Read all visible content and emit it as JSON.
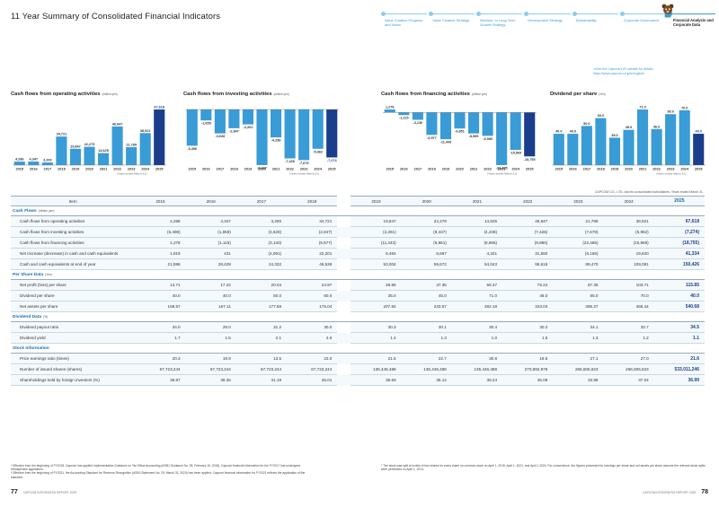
{
  "header": {
    "title": "11 Year Summary of Consolidated Financial Indicators",
    "nav": [
      {
        "label": "Value Creation Progress and Vision",
        "active": false
      },
      {
        "label": "Value Creation Strategy",
        "active": false
      },
      {
        "label": "Medium- to Long-Term Growth Strategy",
        "active": false
      },
      {
        "label": "Development Strategy",
        "active": false
      },
      {
        "label": "Sustainability",
        "active": false
      },
      {
        "label": "Corporate Governance",
        "active": false
      },
      {
        "label": "Financial Analysis and Corporate Data",
        "active": true
      }
    ]
  },
  "see_link": {
    "line1": "➜See the Capcom's IR website for details",
    "line2": "https://www.capcom.co.jp/ir/english/"
  },
  "charts_text": {
    "cf_operating": {
      "title": "Cash flows from operating activities",
      "unit": "(million yen)",
      "note": "(Years ended March 31)"
    },
    "cf_investing": {
      "title": "Cash flows from investing activities",
      "unit": "(million yen)",
      "note": "(Years ended March 31)"
    },
    "cf_financing": {
      "title": "Cash flows from financing activities",
      "unit": "(million yen)",
      "note": "(Years ended March 31)"
    },
    "dividend": {
      "title": "Dividend per share",
      "unit": "(Yen)",
      "note": "(Years ended March 31)"
    }
  },
  "chart_data": [
    {
      "type": "bar",
      "title": "Cash flows from operating activities",
      "ylabel": "(million yen)",
      "categories": [
        "2015",
        "2016",
        "2017",
        "2018",
        "2019",
        "2020",
        "2021",
        "2022",
        "2023",
        "2024",
        "2025"
      ],
      "values": [
        4286,
        4347,
        3200,
        34721,
        19847,
        22279,
        14625,
        46947,
        21789,
        38921,
        67618
      ],
      "labels": [
        "4,286",
        "4,347",
        "3,200",
        "34,721",
        "19,847",
        "22,279",
        "14,625",
        "46,947",
        "21,789",
        "38,921",
        "67,618"
      ],
      "colors": {
        "bar": "#3a9cd6",
        "latest": "#1a3d8c"
      }
    },
    {
      "type": "bar",
      "title": "Cash flows from investing activities",
      "ylabel": "(million yen)",
      "categories": [
        "2015",
        "2016",
        "2017",
        "2018",
        "2019",
        "2020",
        "2021",
        "2022",
        "2023",
        "2024",
        "2025"
      ],
      "values": [
        -5496,
        -1659,
        -3628,
        -2847,
        -2261,
        -8437,
        -4238,
        -7426,
        -7679,
        -5962,
        -7274
      ],
      "labels": [
        "-5,496",
        "-1,659",
        "-3,628",
        "-2,847",
        "-2,261",
        "-8,437",
        "-4,238",
        "-7,426",
        "-7,679",
        "-5,962",
        "-7,274"
      ],
      "colors": {
        "bar": "#3a9cd6",
        "latest": "#1a3d8c"
      }
    },
    {
      "type": "bar",
      "title": "Cash flows from financing activities",
      "ylabel": "(million yen)",
      "categories": [
        "2015",
        "2016",
        "2017",
        "2018",
        "2019",
        "2020",
        "2021",
        "2022",
        "2023",
        "2024",
        "2025"
      ],
      "values": [
        1278,
        -1115,
        -3130,
        -9577,
        -11443,
        -6851,
        -8965,
        -9980,
        -22485,
        -15969,
        -18755
      ],
      "labels": [
        "1,278",
        "-1,115",
        "-3,130",
        "-9,577",
        "-11,443",
        "-6,851",
        "-8,965",
        "-9,980",
        "-22,485",
        "-15,969",
        "-18,755"
      ],
      "colors": {
        "bar": "#3a9cd6",
        "latest": "#1a3d8c"
      }
    },
    {
      "type": "bar",
      "title": "Dividend per share",
      "ylabel": "(Yen)",
      "categories": [
        "2015",
        "2016",
        "2017",
        "2018",
        "2019",
        "2020",
        "2021",
        "2022",
        "2023",
        "2024",
        "2025"
      ],
      "values": [
        40.0,
        40.0,
        50.0,
        60.0,
        35.0,
        45.0,
        71.0,
        46.0,
        65.0,
        70.0,
        40.0
      ],
      "labels": [
        "40.0",
        "40.0",
        "50.0",
        "60.0",
        "35.0",
        "45.0",
        "71.0",
        "46.0",
        "65.0",
        "70.0",
        "40.0"
      ],
      "colors": {
        "bar": "#3a9cd6",
        "latest": "#1a3d8c"
      }
    }
  ],
  "table": {
    "company_note": "CAPCOM CO., LTD. and its consolidated subsidiaries, Years ended March 31",
    "item_header": "Item",
    "years": [
      "2015",
      "2016",
      "2017",
      "2018",
      "2019",
      "2020",
      "2021",
      "2022",
      "2023",
      "2024",
      "2025"
    ],
    "sections": [
      {
        "title": "Cash Flows",
        "unit": "(million yen)",
        "rows": [
          {
            "label": "Cash flows from operating activities",
            "values": [
              "4,286",
              "4,347",
              "3,200",
              "34,721",
              "19,847",
              "22,279",
              "14,625",
              "46,947",
              "21,789",
              "38,921",
              "67,618"
            ]
          },
          {
            "label": "Cash flows from investing activities",
            "values": [
              "(5,496)",
              "(1,659)",
              "(3,628)",
              "(2,847)",
              "(2,261)",
              "(8,437)",
              "(4,238)",
              "(7,426)",
              "(7,679)",
              "(5,962)",
              "(7,274)"
            ]
          },
          {
            "label": "Cash flows from financing activities",
            "values": [
              "1,278",
              "(1,115)",
              "(3,130)",
              "(9,577)",
              "(11,443)",
              "(6,851)",
              "(8,965)",
              "(9,980)",
              "(22,485)",
              "(15,969)",
              "(18,755)"
            ]
          },
          {
            "label": "Net increase (decrease) in cash and cash equivalents",
            "values": [
              "1,819",
              "431",
              "(4,091)",
              "22,201",
              "6,464",
              "6,667",
              "4,321",
              "31,592",
              "(6,165)",
              "19,620",
              "41,334"
            ]
          },
          {
            "label": "Cash and cash equivalents at end of year",
            "values": [
              "21,998",
              "28,429",
              "24,332",
              "46,539",
              "53,004",
              "59,672",
              "64,043",
              "95,616",
              "89,470",
              "109,091",
              "150,426"
            ]
          }
        ]
      },
      {
        "title": "Per Share Data",
        "unit": "(Yen)",
        "rows": [
          {
            "label": "Net profit (loss) per share",
            "values": [
              "14.71",
              "17.22",
              "20.04",
              "24.97",
              "28.86",
              "37.35",
              "58.37",
              "76.24",
              "87.36",
              "103.71",
              "115.85"
            ]
          },
          {
            "label": "Dividend per share",
            "values": [
              "40.0",
              "40.0",
              "50.0",
              "60.0",
              "35.0",
              "45.0",
              "71.0",
              "46.0",
              "65.0",
              "70.0",
              "40.0"
            ]
          },
          {
            "label": "Net assets per share",
            "values": [
              "158.57",
              "167.11",
              "177.58",
              "175.04",
              "207.84",
              "233.57",
              "282.19",
              "343.04",
              "385.27",
              "466.44",
              "540.68"
            ]
          }
        ]
      },
      {
        "title": "Dividend Data",
        "unit": "(%)",
        "rows": [
          {
            "label": "Dividend payout ratio",
            "values": [
              "34.0",
              "29.0",
              "31.2",
              "30.0",
              "30.3",
              "30.1",
              "30.4",
              "30.2",
              "34.1",
              "33.7",
              "34.5"
            ]
          },
          {
            "label": "Dividend yield",
            "values": [
              "1.7",
              "1.5",
              "2.1",
              "2.6",
              "1.4",
              "1.3",
              "1.0",
              "1.5",
              "1.3",
              "1.2",
              "1.1"
            ]
          }
        ]
      },
      {
        "title": "Stock Information",
        "unit": "",
        "rows": [
          {
            "label": "Price earnings ratio (times)",
            "values": [
              "20.3",
              "19.9",
              "13.5",
              "23.0",
              "21.5",
              "22.7",
              "30.8",
              "19.5",
              "27.1",
              "27.0",
              "21.6"
            ]
          },
          {
            "label": "Number of issued shares (shares)",
            "values": [
              "67,723,244",
              "67,723,244",
              "67,723,244",
              "67,723,244",
              "135,446,488",
              "135,446,488",
              "135,446,488",
              "270,892,976",
              "266,505,623",
              "266,505,623",
              "533,011,246"
            ]
          },
          {
            "label": "Shareholdings held by foreign investors (%)",
            "values": [
              "36.87",
              "39.35",
              "31.19",
              "35.01",
              "36.83",
              "35.14",
              "38.24",
              "35.09",
              "33.98",
              "37.04",
              "36.99"
            ]
          }
        ]
      }
    ]
  },
  "footnotes": {
    "left_1": "* Effective from the beginning of FY2018, Capcom has applied Implementation Guidance on Tax Effect Accounting (ASBJ Guidance No. 28, February 16, 2018). Capcom financial information for the FY2017 has undergone retrospective application.",
    "left_2": "* Effective from the beginning of FY2021, the Accounting Standard for Revenue Recognition (ASBJ Statement No. 29, March 31, 2020) has been applied. Capcom financial information for FY2021 reflects the application of the standard.",
    "right_1": "* The stock was split at a ratio of two shares for every share on common stock on April 1, 2018, April 1, 2021, and April 1 2024. For convenience, the figures presented for earnings per share and net assets per share assume the relevant stock splits were performed on April 1, 2014."
  },
  "footer": {
    "left_page": "77",
    "right_page": "78",
    "report_name": "CAPCOM INTEGRATED REPORT 2025"
  }
}
